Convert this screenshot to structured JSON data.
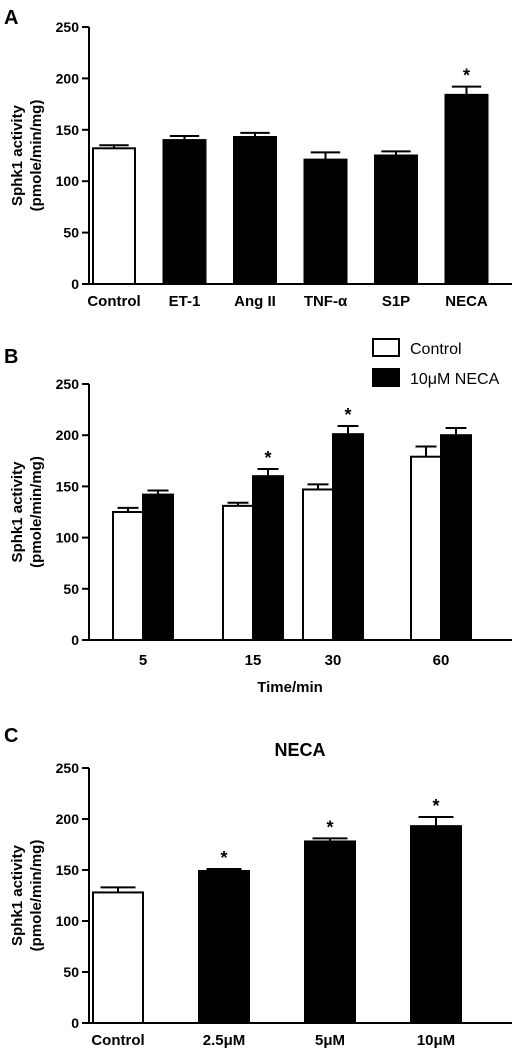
{
  "chart_data": [
    {
      "panel": "A",
      "type": "bar",
      "ylabel": [
        "Sphk1 activity",
        "(pmole/min/mg)"
      ],
      "ylim": [
        0,
        250
      ],
      "yticks": [
        0,
        50,
        100,
        150,
        200,
        250
      ],
      "categories": [
        "Control",
        "ET-1",
        "Ang II",
        "TNF-α",
        "S1P",
        "NECA"
      ],
      "values": [
        132,
        140,
        143,
        121,
        125,
        184
      ],
      "errors": [
        3,
        4,
        4,
        7,
        4,
        8
      ],
      "fills": [
        "#ffffff",
        "#000000",
        "#000000",
        "#000000",
        "#000000",
        "#000000"
      ],
      "significant": [
        false,
        false,
        false,
        false,
        false,
        true
      ],
      "sig_marker": "*"
    },
    {
      "panel": "B",
      "type": "bar",
      "ylabel": [
        "Sphk1 activity",
        "(pmole/min/mg)"
      ],
      "xlabel": "Time/min",
      "ylim": [
        0,
        250
      ],
      "yticks": [
        0,
        50,
        100,
        150,
        200,
        250
      ],
      "categories": [
        "5",
        "15",
        "30",
        "60"
      ],
      "legend_position": "top-right",
      "series": [
        {
          "name": "Control",
          "fill": "#ffffff",
          "values": [
            125,
            131,
            147,
            179
          ],
          "errors": [
            4,
            3,
            5,
            10
          ],
          "significant": [
            false,
            false,
            false,
            false
          ]
        },
        {
          "name": "10μM NECA",
          "fill": "#000000",
          "values": [
            142,
            160,
            201,
            200
          ],
          "errors": [
            4,
            7,
            8,
            7
          ],
          "significant": [
            false,
            true,
            true,
            false
          ]
        }
      ],
      "sig_marker": "*"
    },
    {
      "panel": "C",
      "type": "bar",
      "title": "NECA",
      "ylabel": [
        "Sphk1 activity",
        "(pmole/min/mg)"
      ],
      "ylim": [
        0,
        250
      ],
      "yticks": [
        0,
        50,
        100,
        150,
        200,
        250
      ],
      "categories": [
        "Control",
        "2.5μM",
        "5μM",
        "10μM"
      ],
      "values": [
        128,
        149,
        178,
        193
      ],
      "errors": [
        5,
        2,
        3,
        9
      ],
      "fills": [
        "#ffffff",
        "#000000",
        "#000000",
        "#000000"
      ],
      "significant": [
        false,
        true,
        true,
        true
      ],
      "sig_marker": "*"
    }
  ]
}
